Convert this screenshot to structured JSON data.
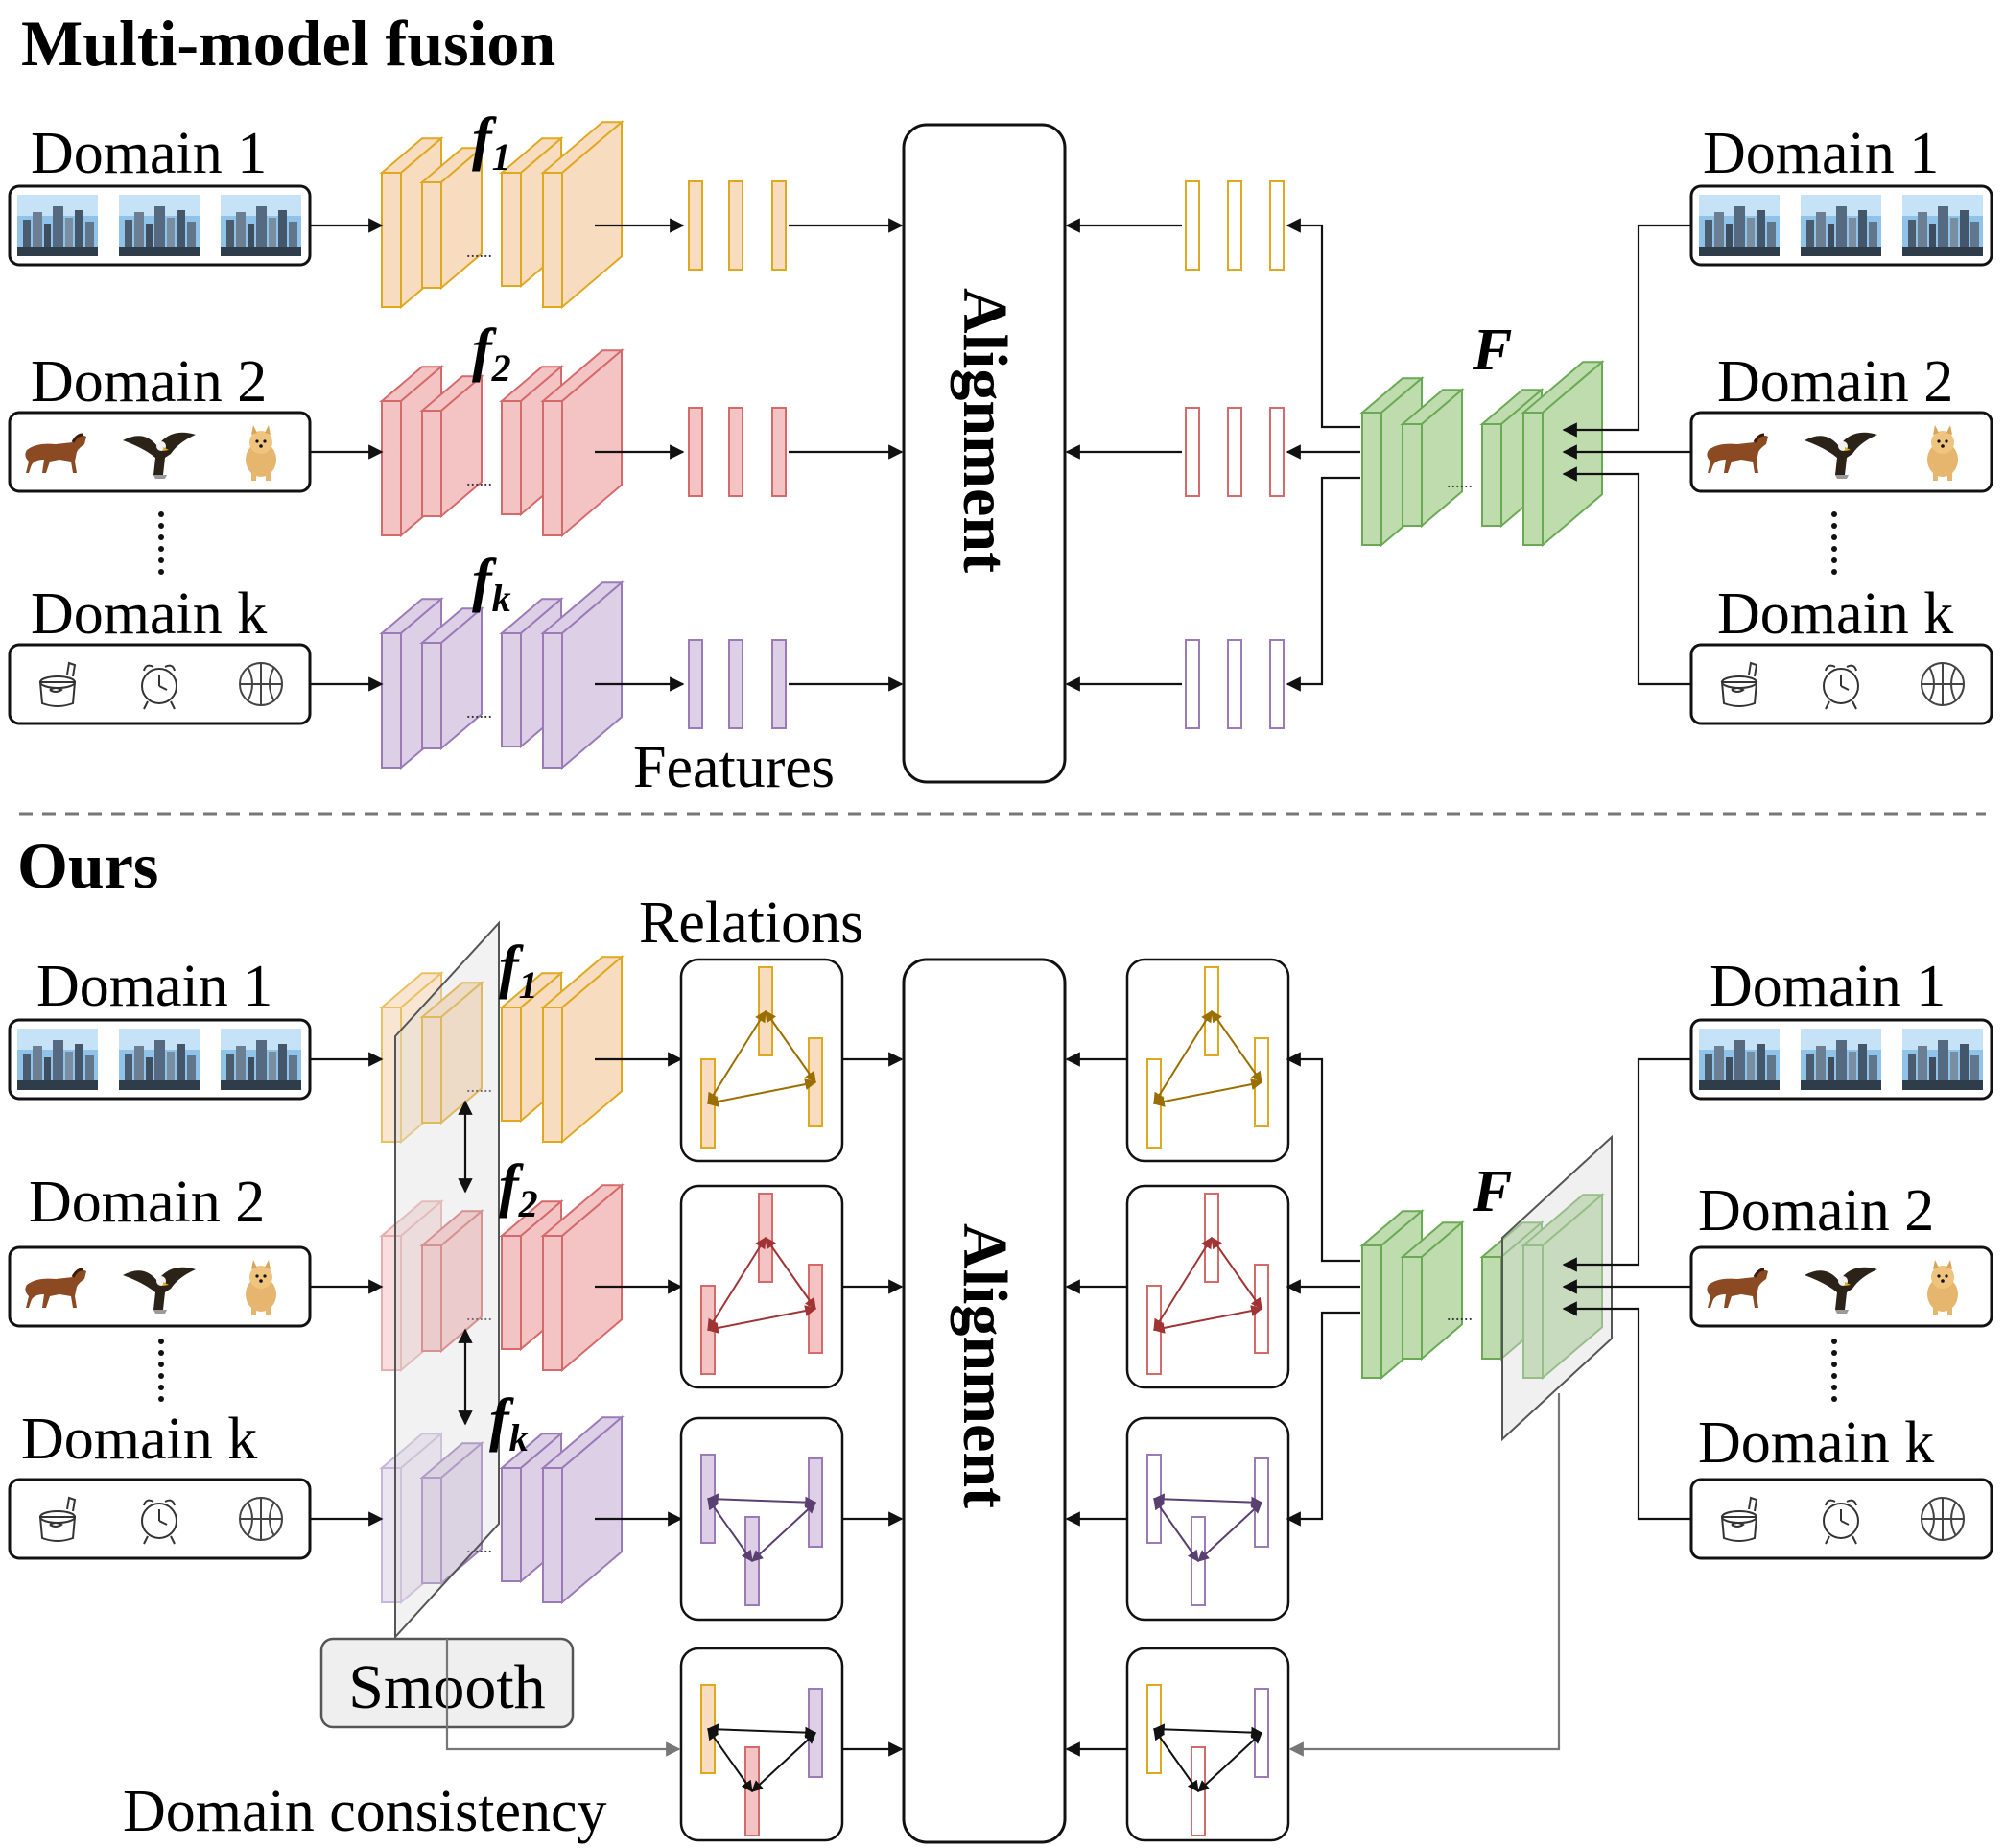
{
  "sections": {
    "top_title": "Multi-model fusion",
    "bottom_title": "Ours"
  },
  "domains": {
    "d1": "Domain 1",
    "d2": "Domain 2",
    "dk": "Domain k"
  },
  "models": {
    "f1": {
      "base": "f",
      "sub": "1"
    },
    "f2": {
      "base": "f",
      "sub": "2"
    },
    "fk": {
      "base": "f",
      "sub": "k"
    },
    "F": "F"
  },
  "labels": {
    "alignment": "Alignment",
    "features": "Features",
    "relations": "Relations",
    "smooth": "Smooth",
    "domain_consistency": "Domain consistency",
    "ellipsis": "......"
  },
  "colors": {
    "orange_fill": "#f7dcbf",
    "orange_stroke": "#e0a820",
    "red_fill": "#f4c4c4",
    "red_stroke": "#d46a6a",
    "purple_fill": "#dccfe6",
    "purple_stroke": "#9a7bb8",
    "green_fill": "#bfdcae",
    "green_stroke": "#6aaa55",
    "orange_arrow": "#9a6f00",
    "red_arrow": "#a03434",
    "purple_arrow": "#5a4070"
  },
  "thumbnail_icons": {
    "domain1": [
      "city-skyline-photo",
      "city-skyline-photo",
      "city-skyline-photo"
    ],
    "domain2": [
      "horse-photo",
      "eagle-photo",
      "dog-photo"
    ],
    "domaink": [
      "pot-sketch",
      "alarm-clock-sketch",
      "basketball-sketch"
    ]
  }
}
